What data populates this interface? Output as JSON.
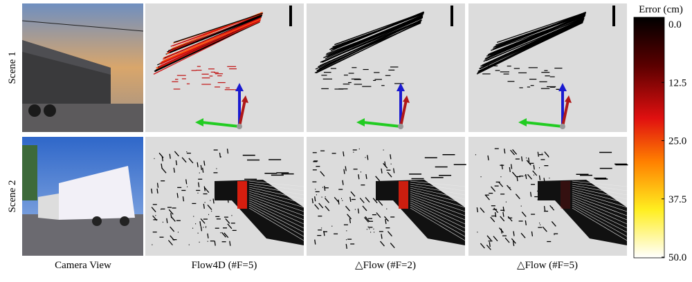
{
  "rows": [
    {
      "label": "Scene 1"
    },
    {
      "label": "Scene 2"
    }
  ],
  "columns": [
    {
      "label": "Camera View"
    },
    {
      "label": "Flow4D (#F=5)"
    },
    {
      "label": "△Flow (#F=2)"
    },
    {
      "label": "△Flow (#F=5)"
    }
  ],
  "colorbar": {
    "title": "Error (cm)",
    "lim": [
      0,
      50
    ],
    "ticks": [
      {
        "value": 0,
        "label": "0.0"
      },
      12.5,
      {
        "value": 25,
        "label": "25.0"
      },
      37.5,
      {
        "value": 50,
        "label": "50.0"
      }
    ]
  }
}
